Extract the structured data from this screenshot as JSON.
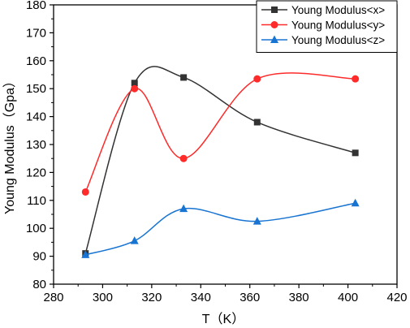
{
  "chart_data": {
    "type": "line",
    "xlabel": "T（K）",
    "ylabel": "Young Modulus（Gpa）",
    "xlim": [
      280,
      420
    ],
    "ylim": [
      80,
      180
    ],
    "xticks": [
      280,
      300,
      320,
      340,
      360,
      380,
      400,
      420
    ],
    "yticks": [
      80,
      90,
      100,
      110,
      120,
      130,
      140,
      150,
      160,
      170,
      180
    ],
    "grid": false,
    "legend_position": "top-right",
    "series": [
      {
        "name": "Young Modulus<x>",
        "color": "#333333",
        "marker": "square",
        "x": [
          293,
          313,
          333,
          363,
          403
        ],
        "y": [
          91,
          152,
          154,
          138,
          127
        ]
      },
      {
        "name": "Young Modulus<y>",
        "color": "#ff2a2a",
        "marker": "circle",
        "x": [
          293,
          313,
          333,
          363,
          403
        ],
        "y": [
          113,
          150,
          125,
          153.5,
          153.5
        ]
      },
      {
        "name": "Young Modulus<z>",
        "color": "#1874d2",
        "marker": "triangle",
        "x": [
          293,
          313,
          333,
          363,
          403
        ],
        "y": [
          90.5,
          95.5,
          107,
          102.5,
          109
        ]
      }
    ]
  }
}
